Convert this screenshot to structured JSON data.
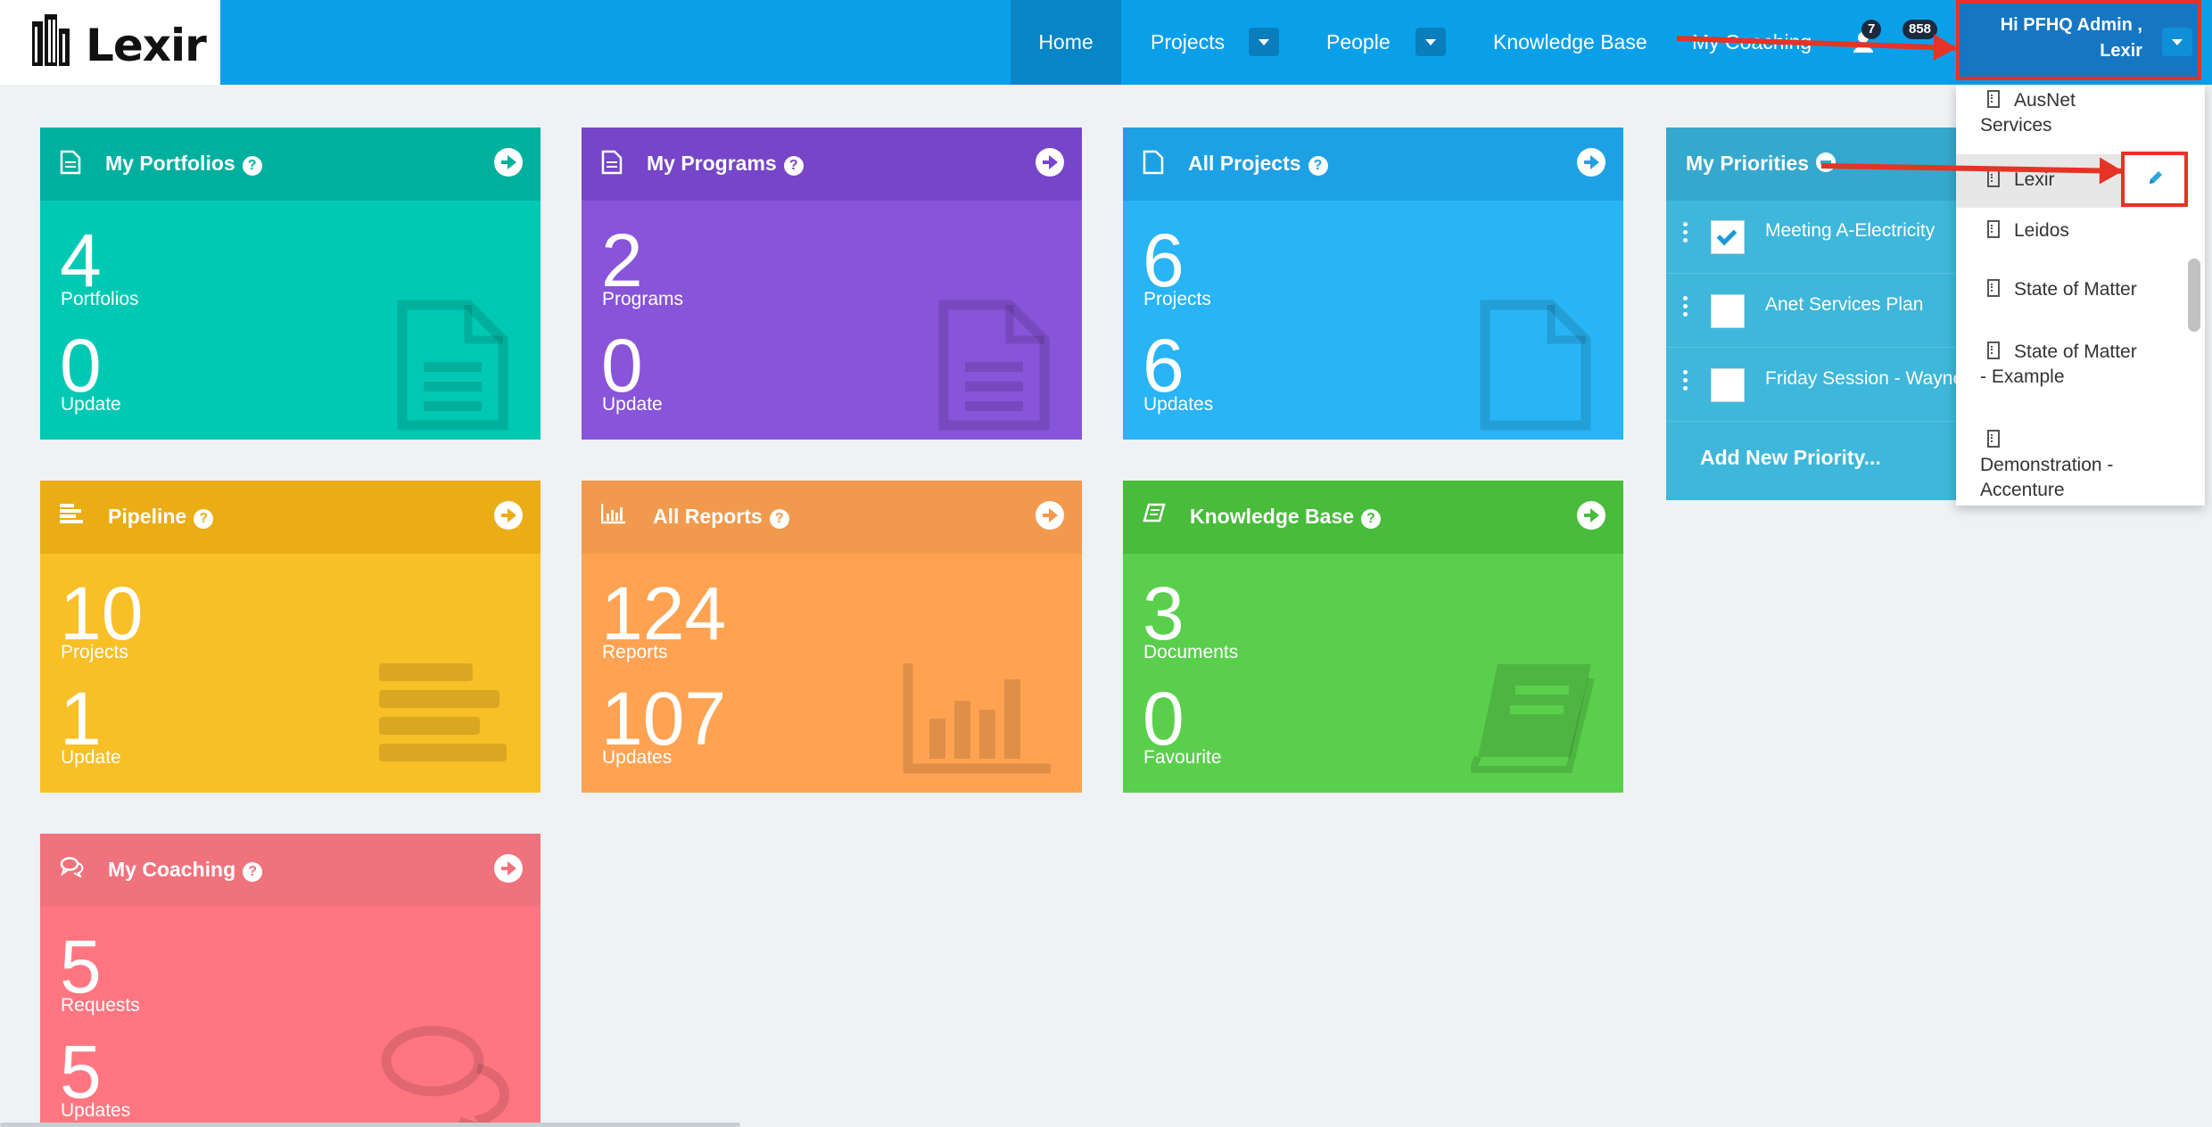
{
  "navbar": {
    "logo_text": "Lexir",
    "items": [
      {
        "label": "Home"
      },
      {
        "label": "Projects"
      },
      {
        "label": "People"
      },
      {
        "label": "Knowledge Base"
      },
      {
        "label": "My Coaching"
      }
    ],
    "badges": [
      "7",
      "858"
    ],
    "user_greeting": "Hi PFHQ Admin ,",
    "user_org": "Lexir"
  },
  "tiles": {
    "portfolios": {
      "title": "My Portfolios",
      "num1": "4",
      "label1": "Portfolios",
      "num2": "0",
      "label2": "Update",
      "color": "#00c9b3"
    },
    "programs": {
      "title": "My Programs",
      "num1": "2",
      "label1": "Programs",
      "num2": "0",
      "label2": "Update",
      "color": "#8854d9"
    },
    "projects": {
      "title": "All Projects",
      "num1": "6",
      "label1": "Projects",
      "num2": "6",
      "label2": "Updates",
      "color": "#28b4f5"
    },
    "pipeline": {
      "title": "Pipeline",
      "num1": "10",
      "label1": "Projects",
      "num2": "1",
      "label2": "Update",
      "color": "#f9bf27"
    },
    "reports": {
      "title": "All Reports",
      "num1": "124",
      "label1": "Reports",
      "num2": "107",
      "label2": "Updates",
      "color": "#ffa352"
    },
    "knowledge": {
      "title": "Knowledge Base",
      "num1": "3",
      "label1": "Documents",
      "num2": "0",
      "label2": "Favourite",
      "color": "#5acf4c"
    },
    "coaching": {
      "title": "My Coaching",
      "num1": "5",
      "label1": "Requests",
      "num2": "5",
      "label2": "Updates",
      "color": "#ff7681"
    }
  },
  "priorities": {
    "title": "My Priorities",
    "items": [
      {
        "text": "Meeting A-Electricity",
        "checked": true
      },
      {
        "text": "Anet Services Plan",
        "checked": false
      },
      {
        "text": "Friday Session - Wayne",
        "checked": false
      }
    ],
    "add_label": "Add New Priority..."
  },
  "org_dropdown": {
    "items": [
      {
        "line1": "AusNet",
        "line2": "Services"
      },
      {
        "line1": "Lexir",
        "line2": ""
      },
      {
        "line1": "Leidos",
        "line2": ""
      },
      {
        "line1": "State of Matter",
        "line2": ""
      },
      {
        "line1": "State of Matter",
        "line2": "- Example"
      },
      {
        "line1": "",
        "line2": "Demonstration -",
        "line3": "Accenture"
      }
    ],
    "selected": "Lexir"
  }
}
